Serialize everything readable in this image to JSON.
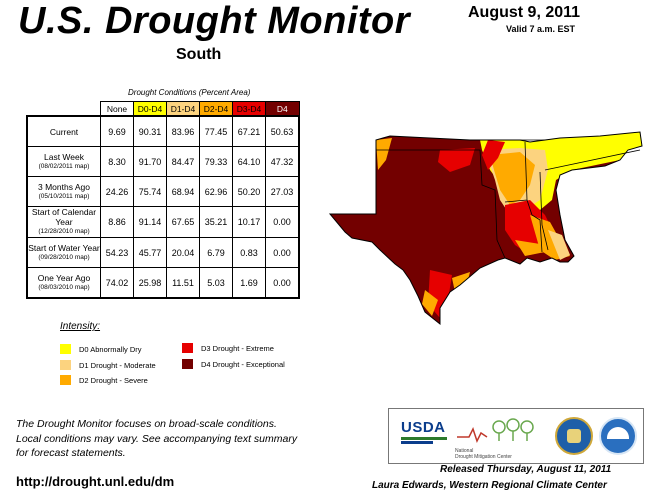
{
  "header": {
    "title": "U.S. Drought Monitor",
    "date": "August 9, 2011",
    "valid": "Valid 7 a.m. EST",
    "region": "South"
  },
  "table": {
    "caption": "Drought Conditions (Percent Area)",
    "columns": [
      "None",
      "D0-D4",
      "D1-D4",
      "D2-D4",
      "D3-D4",
      "D4"
    ],
    "column_colors": [
      "#ffffff",
      "#ffff00",
      "#fcd37f",
      "#ffaa00",
      "#e60000",
      "#730000"
    ],
    "rows": [
      {
        "label": "Current",
        "sub": "",
        "values": [
          "9.69",
          "90.31",
          "83.96",
          "77.45",
          "67.21",
          "50.63"
        ]
      },
      {
        "label": "Last Week",
        "sub": "(08/02/2011 map)",
        "values": [
          "8.30",
          "91.70",
          "84.47",
          "79.33",
          "64.10",
          "47.32"
        ]
      },
      {
        "label": "3 Months Ago",
        "sub": "(05/10/2011 map)",
        "values": [
          "24.26",
          "75.74",
          "68.94",
          "62.96",
          "50.20",
          "27.03"
        ]
      },
      {
        "label": "Start of Calendar Year",
        "sub": "(12/28/2010 map)",
        "values": [
          "8.86",
          "91.14",
          "67.65",
          "35.21",
          "10.17",
          "0.00"
        ]
      },
      {
        "label": "Start of Water Year",
        "sub": "(09/28/2010 map)",
        "values": [
          "54.23",
          "45.77",
          "20.04",
          "6.79",
          "0.83",
          "0.00"
        ]
      },
      {
        "label": "One Year Ago",
        "sub": "(08/03/2010 map)",
        "values": [
          "74.02",
          "25.98",
          "11.51",
          "5.03",
          "1.69",
          "0.00"
        ]
      }
    ]
  },
  "legend": {
    "title": "Intensity:",
    "items": [
      {
        "label": "D0 Abnormally Dry",
        "color": "#ffff00"
      },
      {
        "label": "D1 Drought - Moderate",
        "color": "#fcd37f"
      },
      {
        "label": "D2 Drought - Severe",
        "color": "#ffaa00"
      },
      {
        "label": "D3 Drought - Extreme",
        "color": "#e60000"
      },
      {
        "label": "D4 Drought - Exceptional",
        "color": "#730000"
      }
    ]
  },
  "notes": [
    "The Drought Monitor focuses on broad-scale conditions.",
    "Local conditions may vary. See accompanying text summary",
    "for forecast statements."
  ],
  "url": "http://drought.unl.edu/dm",
  "released": "Released Thursday, August 11, 2011",
  "author": "Laura Edwards, Western Regional Climate Center",
  "logos": {
    "usda": "USDA",
    "ndmc_line1": "National",
    "ndmc_line2": "Drought Mitigation Center"
  }
}
